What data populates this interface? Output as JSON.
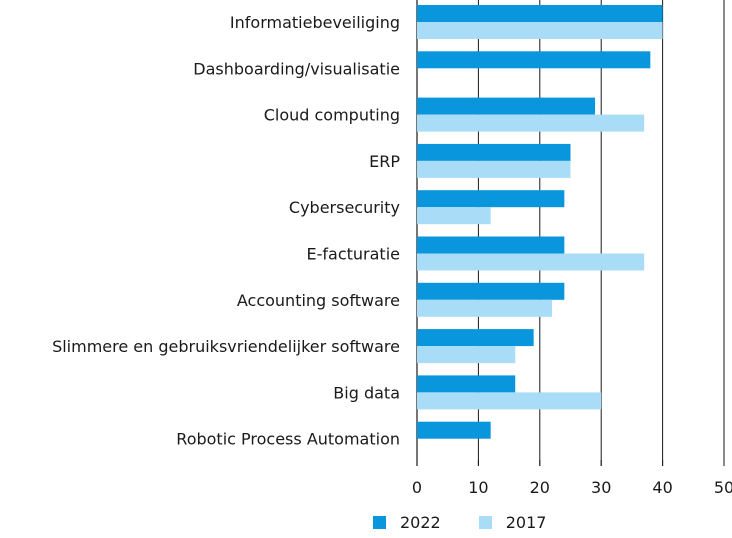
{
  "chart_data": {
    "type": "bar",
    "orientation": "horizontal",
    "title": "",
    "xlabel": "",
    "ylabel": "",
    "xlim": [
      0,
      50
    ],
    "xticks": [
      0,
      10,
      20,
      30,
      40,
      50
    ],
    "grid": true,
    "legend_position": "bottom",
    "categories": [
      "Informatiebeveiliging",
      "Dashboarding/visualisatie",
      "Cloud computing",
      "ERP",
      "Cybersecurity",
      "E-facturatie",
      "Accounting software",
      "Slimmere en gebruiksvriendelijker software",
      "Big data",
      "Robotic Process Automation"
    ],
    "series": [
      {
        "name": "2022",
        "color": "#0a96dc",
        "values": [
          40,
          38,
          29,
          25,
          24,
          24,
          24,
          19,
          16,
          12
        ]
      },
      {
        "name": "2017",
        "color": "#a8dcf7",
        "values": [
          40,
          null,
          37,
          25,
          12,
          37,
          22,
          16,
          30,
          null
        ]
      }
    ]
  }
}
